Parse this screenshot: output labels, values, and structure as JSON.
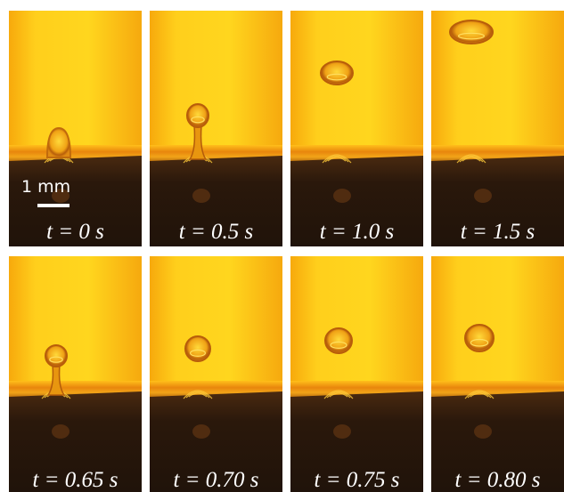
{
  "scale_bar": {
    "label": "1 mm"
  },
  "panels": [
    {
      "label": "t = 0 s"
    },
    {
      "label": "t = 0.5 s"
    },
    {
      "label": "t = 1.0 s"
    },
    {
      "label": "t = 1.5 s"
    },
    {
      "label": "t = 0.65 s"
    },
    {
      "label": "t = 0.70 s"
    },
    {
      "label": "t = 0.75 s"
    },
    {
      "label": "t = 0.80 s"
    }
  ]
}
